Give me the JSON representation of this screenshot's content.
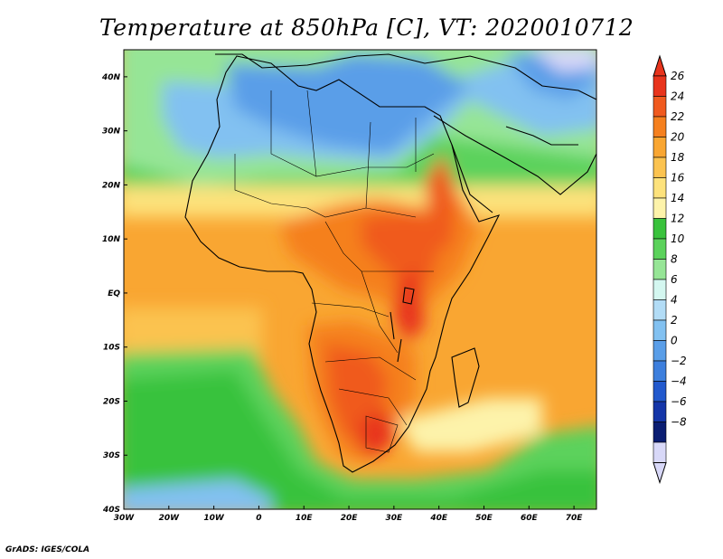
{
  "title": "Temperature at 850hPa [C], VT: 2020010712",
  "credit": "GrADS: IGES/COLA",
  "map": {
    "variable": "Temperature at 850hPa",
    "units": "C",
    "valid_time": "2020010712",
    "lat_range": [
      -40,
      45
    ],
    "lon_range": [
      -30,
      75
    ],
    "lat_ticks": [
      {
        "value": 40,
        "label": "40N"
      },
      {
        "value": 30,
        "label": "30N"
      },
      {
        "value": 20,
        "label": "20N"
      },
      {
        "value": 10,
        "label": "10N"
      },
      {
        "value": 0,
        "label": "EQ"
      },
      {
        "value": -10,
        "label": "10S"
      },
      {
        "value": -20,
        "label": "20S"
      },
      {
        "value": -30,
        "label": "30S"
      },
      {
        "value": -40,
        "label": "40S"
      }
    ],
    "lon_ticks": [
      {
        "value": -30,
        "label": "30W"
      },
      {
        "value": -20,
        "label": "20W"
      },
      {
        "value": -10,
        "label": "10W"
      },
      {
        "value": 0,
        "label": "0"
      },
      {
        "value": 10,
        "label": "10E"
      },
      {
        "value": 20,
        "label": "20E"
      },
      {
        "value": 30,
        "label": "30E"
      },
      {
        "value": 40,
        "label": "40E"
      },
      {
        "value": 50,
        "label": "50E"
      },
      {
        "value": 60,
        "label": "60E"
      },
      {
        "value": 70,
        "label": "70E"
      }
    ]
  },
  "colorbar": {
    "levels": [
      26,
      24,
      22,
      20,
      18,
      16,
      14,
      12,
      10,
      8,
      6,
      4,
      2,
      0,
      -2,
      -4,
      -6,
      -8
    ],
    "labels": [
      "26",
      "24",
      "22",
      "20",
      "18",
      "16",
      "14",
      "12",
      "10",
      "8",
      "6",
      "4",
      "2",
      "0",
      "−2",
      "−4",
      "−6",
      "−8"
    ],
    "colors_top_to_bottom": [
      "#e8341c",
      "#f05a1f",
      "#f5801f",
      "#f9a632",
      "#fbc350",
      "#fde27c",
      "#fdf3aa",
      "#39c23c",
      "#5bd25b",
      "#96e596",
      "#d4f7f0",
      "#b2dcf6",
      "#82c1f1",
      "#5a9ee8",
      "#3d7fdd",
      "#2259cd",
      "#1435a8",
      "#0a1d72",
      "#d8d8f8"
    ],
    "over_color": "#e8341c",
    "under_color": "#d8d8f8"
  }
}
